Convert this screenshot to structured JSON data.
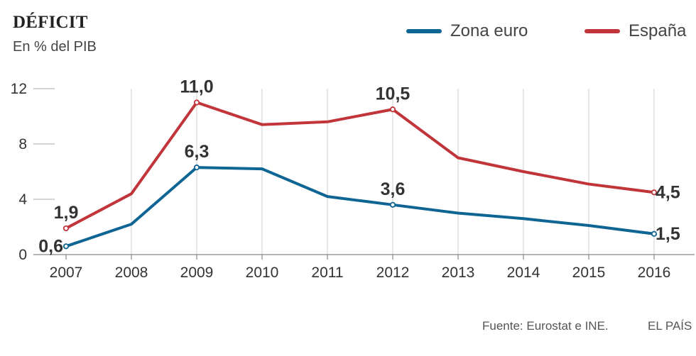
{
  "chart_data": {
    "type": "line",
    "title": "DÉFICIT",
    "subtitle": "En % del PIB",
    "categories": [
      "2007",
      "2008",
      "2009",
      "2010",
      "2011",
      "2012",
      "2013",
      "2014",
      "2015",
      "2016"
    ],
    "ylim": [
      0,
      12
    ],
    "yticks": [
      0,
      4,
      8,
      12
    ],
    "grid": "vertical",
    "legend_position": "top-right",
    "series": [
      {
        "name": "Zona euro",
        "color": "#0e6593",
        "values": [
          0.6,
          2.2,
          6.3,
          6.2,
          4.2,
          3.6,
          3.0,
          2.6,
          2.1,
          1.5
        ]
      },
      {
        "name": "España",
        "color": "#c0343a",
        "values": [
          1.9,
          4.4,
          11.0,
          9.4,
          9.6,
          10.5,
          7.0,
          6.0,
          5.1,
          4.5
        ]
      }
    ],
    "annotations": [
      {
        "series": 0,
        "index": 0,
        "label": "0,6",
        "pos": "left"
      },
      {
        "series": 1,
        "index": 0,
        "label": "1,9",
        "pos": "above"
      },
      {
        "series": 0,
        "index": 2,
        "label": "6,3",
        "pos": "above"
      },
      {
        "series": 1,
        "index": 2,
        "label": "11,0",
        "pos": "above"
      },
      {
        "series": 0,
        "index": 5,
        "label": "3,6",
        "pos": "above"
      },
      {
        "series": 1,
        "index": 5,
        "label": "10,5",
        "pos": "above"
      },
      {
        "series": 1,
        "index": 9,
        "label": "4,5",
        "pos": "right"
      },
      {
        "series": 0,
        "index": 9,
        "label": "1,5",
        "pos": "right"
      }
    ]
  },
  "legend": {
    "zona_euro": "Zona euro",
    "espana": "España"
  },
  "footer": {
    "source": "Fuente: Eurostat e INE.",
    "brand": "EL PAÍS"
  }
}
